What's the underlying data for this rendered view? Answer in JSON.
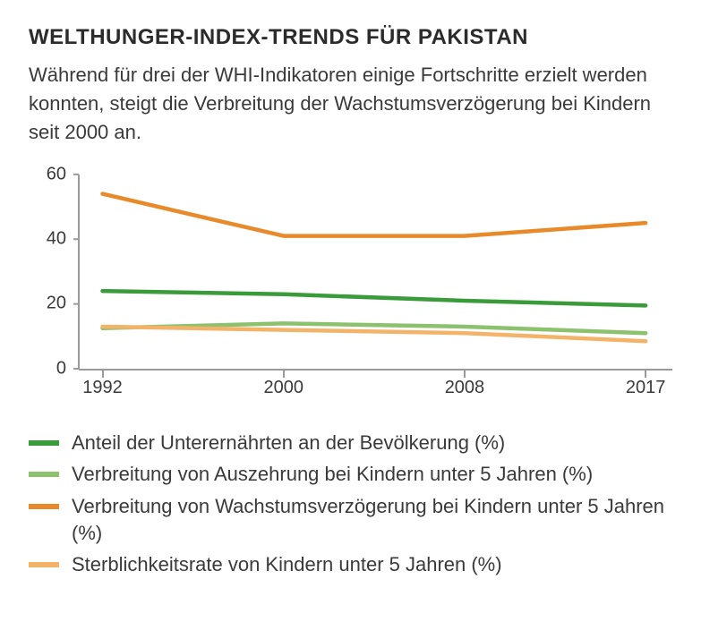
{
  "title": "WELTHUNGER-INDEX-TRENDS FÜR PAKISTAN",
  "subtitle": "Während für drei der WHI-Indikatoren einige Fortschritte erzielt werden konnten, steigt die Verbreitung der Wachstumsverzögerung bei Kindern seit 2000 an.",
  "chart": {
    "type": "line",
    "x_categories": [
      "1992",
      "2000",
      "2008",
      "2017"
    ],
    "x_positions_pct": [
      4,
      34.5,
      65,
      95.5
    ],
    "ylim": [
      0,
      63
    ],
    "yticks": [
      0,
      20,
      40,
      60
    ],
    "axis_color": "#9a9a9a",
    "tick_fontsize": 20,
    "line_width": 4.5,
    "background_color": "#ffffff",
    "series": [
      {
        "key": "stunting",
        "label": "Verbreitung von Wachstumsverzögerung bei Kindern unter 5 Jahren (%)",
        "color": "#e88a2a",
        "values": [
          54,
          41,
          41,
          45
        ]
      },
      {
        "key": "undernourished",
        "label": "Anteil der Unterernährten an der Bevölkerung (%)",
        "color": "#3a9b3a",
        "values": [
          24,
          23,
          21,
          19.5
        ]
      },
      {
        "key": "wasting",
        "label": "Verbreitung von Auszehrung bei Kindern unter 5 Jahren (%)",
        "color": "#8cc26e",
        "values": [
          12.5,
          14,
          13,
          11
        ]
      },
      {
        "key": "mortality",
        "label": "Sterblichkeitsrate von Kindern unter 5 Jahren (%)",
        "color": "#f3b46a",
        "values": [
          13,
          12,
          11,
          8.5
        ]
      }
    ]
  },
  "legend_order": [
    "undernourished",
    "wasting",
    "stunting",
    "mortality"
  ]
}
